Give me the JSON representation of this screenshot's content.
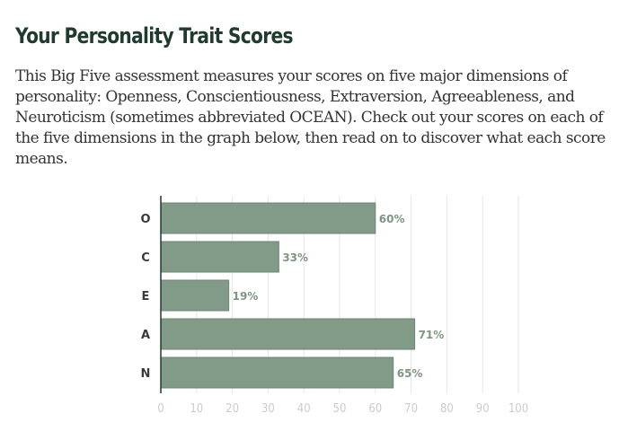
{
  "heading": "Your Personality Trait Scores",
  "intro": "This Big Five assessment measures your scores on five major dimensions of personality: Openness, Conscientiousness, Extraversion, Agreeableness, and Neuroticism (sometimes abbreviated OCEAN). Check out your scores on each of the five dimensions in the graph below, then read on to discover what each score means.",
  "colors": {
    "bar": "#829b88",
    "bar_border": "#6d8673",
    "grid": "#e6e6e6",
    "axis": "#1f3b2f",
    "heading": "#1f3b2f"
  },
  "chart_data": {
    "type": "bar",
    "orientation": "horizontal",
    "categories": [
      "O",
      "C",
      "E",
      "A",
      "N"
    ],
    "values": [
      60,
      33,
      19,
      71,
      65
    ],
    "data_labels": [
      "60%",
      "33%",
      "19%",
      "71%",
      "65%"
    ],
    "xlim": [
      0,
      100
    ],
    "x_ticks": [
      "0",
      "10",
      "20",
      "30",
      "40",
      "50",
      "60",
      "70",
      "80",
      "90",
      "100"
    ],
    "grid": true,
    "legend": "none"
  }
}
